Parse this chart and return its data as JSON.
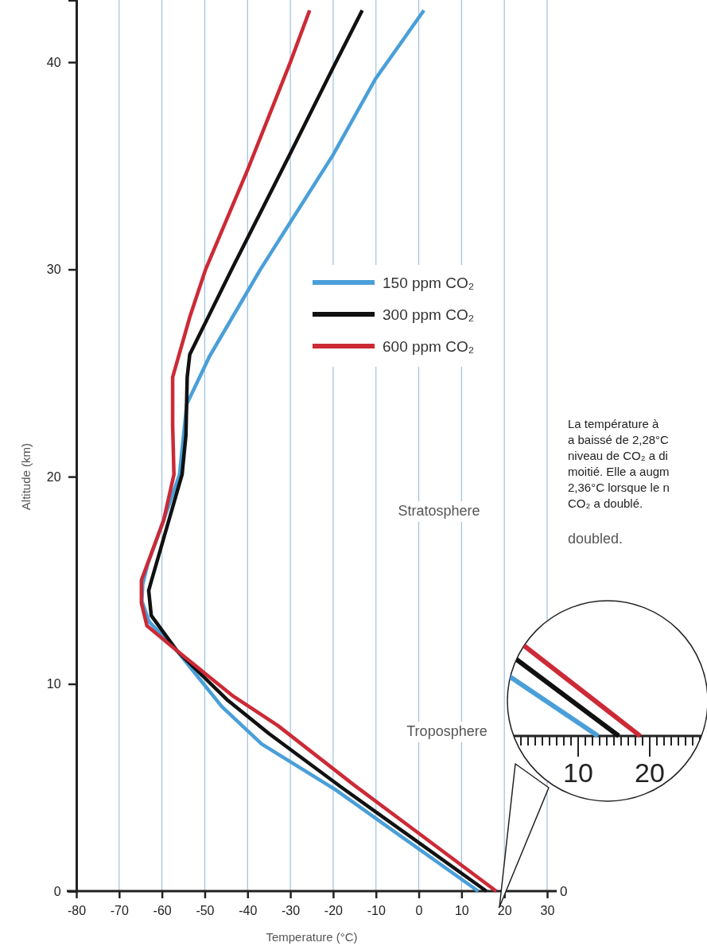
{
  "chart_data": {
    "type": "line",
    "xlabel": "Temperature (°C)",
    "ylabel": "Altitude (km)",
    "xlim": [
      -80,
      30
    ],
    "xticks": [
      -80,
      -70,
      -60,
      -50,
      -40,
      -30,
      -20,
      -10,
      0,
      10,
      20,
      30
    ],
    "ylim": [
      0,
      43
    ],
    "yticks": [
      0,
      10,
      20,
      30,
      40
    ],
    "grid": "x",
    "legend": "right",
    "line_style": "solid",
    "marker": "none",
    "series": [
      {
        "name": "150 ppm CO₂",
        "color": "#4a9fd8",
        "x": [
          13.9,
          -19.5,
          -36.7,
          -46,
          -56.5,
          -63,
          -64.7,
          -64.5,
          -63.3,
          -59.6,
          -55.9,
          -54.2,
          -48.9,
          -37,
          -20.1,
          -10.1,
          1.2
        ],
        "values": [
          0,
          4.9,
          7.1,
          8.9,
          11.6,
          13,
          14,
          14.8,
          15.8,
          17.9,
          20.1,
          23.5,
          25.8,
          30,
          35.5,
          39.2,
          42.5
        ]
      },
      {
        "name": "300 ppm CO₂",
        "color": "#111111",
        "x": [
          15.8,
          -18,
          -35,
          -44.6,
          -56.5,
          -62.5,
          -63.1,
          -62.7,
          -55.3,
          -54.4,
          -54.1,
          -53.5,
          -43.7,
          -30,
          -20.1,
          -13.2
        ],
        "values": [
          0,
          5,
          7.6,
          9.2,
          11.6,
          13.3,
          14.5,
          14.8,
          20.1,
          22,
          24.8,
          25.9,
          30,
          35.6,
          39.7,
          42.5
        ]
      },
      {
        "name": "600 ppm CO₂",
        "color": "#cc2a36",
        "x": [
          18.1,
          -15,
          -33,
          -43.3,
          -56.5,
          -63.5,
          -64.8,
          -64.8,
          -59.6,
          -57.2,
          -57.5,
          -57.5,
          -53.5,
          -49.8,
          -40,
          -30,
          -25.5
        ],
        "values": [
          0,
          5.1,
          8,
          9.4,
          11.6,
          12.8,
          13.9,
          15,
          17.9,
          20.1,
          22.5,
          24.8,
          27.7,
          30,
          34.8,
          40,
          42.5
        ]
      }
    ],
    "annotations": [
      "Stratosphere",
      "Troposphere",
      "La température à\na baissé de 2,28°C\nniveau de CO₂ a di\nmoitié. Elle a augm\n2,36°C lorsque le n\nCO₂ a doublé.",
      "doubled.",
      "0",
      "10",
      "20"
    ]
  }
}
